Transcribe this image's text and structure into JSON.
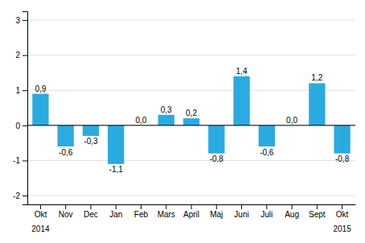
{
  "chart_data": {
    "type": "bar",
    "categories": [
      "Okt",
      "Nov",
      "Dec",
      "Jan",
      "Feb",
      "Mars",
      "April",
      "Maj",
      "Juni",
      "Juli",
      "Aug",
      "Sept",
      "Okt"
    ],
    "values": [
      0.9,
      -0.6,
      -0.3,
      -1.1,
      0.0,
      0.3,
      0.2,
      -0.8,
      1.4,
      -0.6,
      0.0,
      1.2,
      -0.8
    ],
    "value_labels": [
      "0,9",
      "-0,6",
      "-0,3",
      "-1,1",
      "0,0",
      "0,3",
      "0,2",
      "-0,8",
      "1,4",
      "-0,6",
      "0,0",
      "1,2",
      "-0,8"
    ],
    "data_labels": true,
    "color": "#29abe2",
    "ylim": [
      -2.25,
      3.25
    ],
    "yticks": [
      -2,
      -1,
      0,
      1,
      2,
      3
    ],
    "grid": true,
    "annotations": [
      "2014",
      "2015"
    ]
  }
}
